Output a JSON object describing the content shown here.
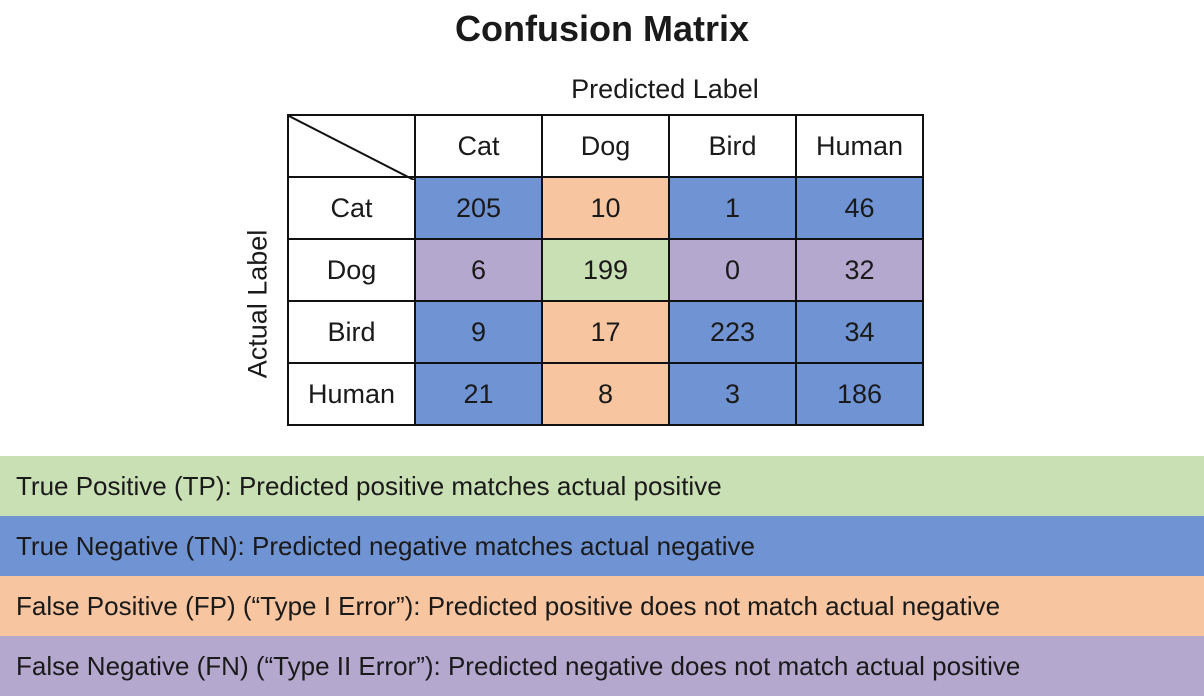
{
  "title": "Confusion Matrix",
  "predicted_axis_label": "Predicted Label",
  "actual_axis_label": "Actual Label",
  "colors": {
    "tp": "#c9dfb4",
    "tn": "#6f93d3",
    "fp": "#f7c59f",
    "fn": "#b5a8cf"
  },
  "columns": [
    "Cat",
    "Dog",
    "Bird",
    "Human"
  ],
  "rows": [
    {
      "label": "Cat",
      "values": [
        "205",
        "10",
        "1",
        "46"
      ],
      "types": [
        "tn",
        "fp",
        "tn",
        "tn"
      ]
    },
    {
      "label": "Dog",
      "values": [
        "6",
        "199",
        "0",
        "32"
      ],
      "types": [
        "fn",
        "tp",
        "fn",
        "fn"
      ]
    },
    {
      "label": "Bird",
      "values": [
        "9",
        "17",
        "223",
        "34"
      ],
      "types": [
        "tn",
        "fp",
        "tn",
        "tn"
      ]
    },
    {
      "label": "Human",
      "values": [
        "21",
        "8",
        "3",
        "186"
      ],
      "types": [
        "tn",
        "fp",
        "tn",
        "tn"
      ]
    }
  ],
  "legend": [
    {
      "type": "tp",
      "text": "True Positive (TP): Predicted positive matches actual positive"
    },
    {
      "type": "tn",
      "text": "True Negative (TN): Predicted negative matches actual negative"
    },
    {
      "type": "fp",
      "text": "False Positive (FP) (“Type I Error”): Predicted positive does not match actual negative"
    },
    {
      "type": "fn",
      "text": "False Negative (FN) (“Type II Error”): Predicted negative does not match actual positive"
    }
  ]
}
